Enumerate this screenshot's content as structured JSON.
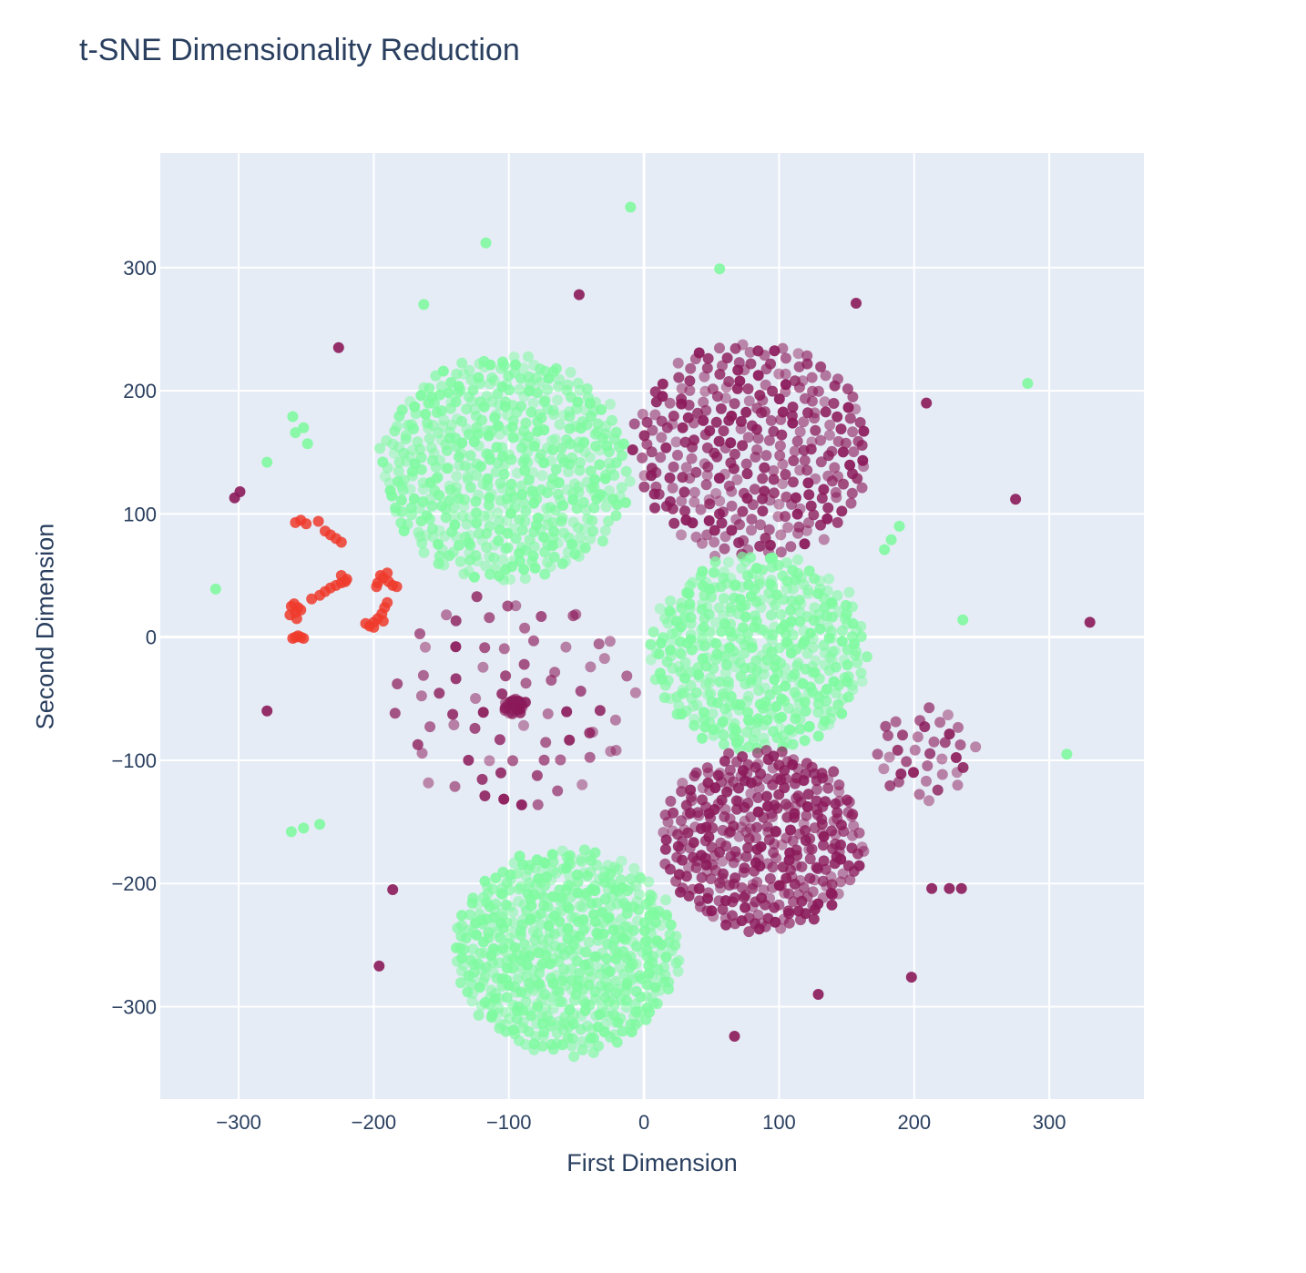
{
  "chart_data": {
    "type": "scatter",
    "title": "t-SNE Dimensionality Reduction",
    "xlabel": "First Dimension",
    "ylabel": "Second Dimension",
    "xlim": [
      -358,
      370
    ],
    "ylim": [
      -375,
      393
    ],
    "x_ticks": [
      -300,
      -200,
      -100,
      0,
      100,
      200,
      300
    ],
    "y_ticks": [
      -300,
      -200,
      -100,
      0,
      100,
      200,
      300
    ],
    "grid": true,
    "legend": "none",
    "colors": {
      "green": "#7ffaa0",
      "maroon": "#8b1a5a",
      "red": "#ef3b2c",
      "plot_bg": "#e5ecf6",
      "grid": "#ffffff"
    },
    "clusters": [
      {
        "color": "green",
        "shape": "disk",
        "cx": -103,
        "cy": 137,
        "r": 92,
        "n": 520
      },
      {
        "color": "maroon",
        "shape": "disk",
        "cx": 80,
        "cy": 152,
        "r": 88,
        "n": 320
      },
      {
        "color": "green",
        "shape": "disk",
        "cx": 85,
        "cy": -13,
        "r": 80,
        "n": 430
      },
      {
        "color": "maroon",
        "shape": "disk",
        "cx": 88,
        "cy": -165,
        "r": 75,
        "n": 360
      },
      {
        "color": "green",
        "shape": "disk",
        "cx": -57,
        "cy": -255,
        "r": 83,
        "n": 560
      },
      {
        "color": "maroon",
        "shape": "ring",
        "cx": -95,
        "cy": -55,
        "r": 92,
        "n": 75
      },
      {
        "color": "maroon",
        "shape": "dense",
        "cx": -97,
        "cy": -57,
        "r": 7,
        "n": 30
      },
      {
        "color": "maroon",
        "shape": "ring",
        "cx": 207,
        "cy": -95,
        "r": 38,
        "n": 38
      }
    ],
    "red_points": [
      [
        -258,
        93
      ],
      [
        -254,
        95
      ],
      [
        -250,
        92
      ],
      [
        -241,
        94
      ],
      [
        -236,
        86
      ],
      [
        -232,
        83
      ],
      [
        -228,
        80
      ],
      [
        -224,
        77
      ],
      [
        -261,
        25
      ],
      [
        -258,
        20
      ],
      [
        -262,
        18
      ],
      [
        -256,
        24
      ],
      [
        -259,
        27
      ],
      [
        -257,
        15
      ],
      [
        -254,
        22
      ],
      [
        -258,
        0
      ],
      [
        -254,
        0
      ],
      [
        -260,
        -1
      ],
      [
        -256,
        1
      ],
      [
        -252,
        -1
      ],
      [
        -246,
        31
      ],
      [
        -240,
        34
      ],
      [
        -236,
        37
      ],
      [
        -232,
        40
      ],
      [
        -228,
        42
      ],
      [
        -224,
        44
      ],
      [
        -220,
        47
      ],
      [
        -224,
        50
      ],
      [
        -221,
        45
      ],
      [
        -203,
        9
      ],
      [
        -200,
        12
      ],
      [
        -197,
        15
      ],
      [
        -194,
        19
      ],
      [
        -192,
        24
      ],
      [
        -190,
        28
      ],
      [
        -206,
        11
      ],
      [
        -200,
        8
      ],
      [
        -193,
        13
      ],
      [
        -197,
        44
      ],
      [
        -193,
        48
      ],
      [
        -189,
        45
      ],
      [
        -186,
        42
      ],
      [
        -195,
        50
      ],
      [
        -190,
        52
      ],
      [
        -183,
        41
      ],
      [
        -198,
        41
      ]
    ],
    "outliers": [
      {
        "x": -10,
        "y": 349,
        "color": "green"
      },
      {
        "x": -117,
        "y": 320,
        "color": "green"
      },
      {
        "x": 56,
        "y": 299,
        "color": "green"
      },
      {
        "x": -163,
        "y": 270,
        "color": "green"
      },
      {
        "x": 284,
        "y": 206,
        "color": "green"
      },
      {
        "x": -260,
        "y": 179,
        "color": "green"
      },
      {
        "x": -252,
        "y": 170,
        "color": "green"
      },
      {
        "x": -258,
        "y": 166,
        "color": "green"
      },
      {
        "x": -249,
        "y": 157,
        "color": "green"
      },
      {
        "x": -279,
        "y": 142,
        "color": "green"
      },
      {
        "x": 189,
        "y": 90,
        "color": "green"
      },
      {
        "x": 183,
        "y": 79,
        "color": "green"
      },
      {
        "x": 178,
        "y": 71,
        "color": "green"
      },
      {
        "x": -317,
        "y": 39,
        "color": "green"
      },
      {
        "x": 236,
        "y": 14,
        "color": "green"
      },
      {
        "x": 313,
        "y": -95,
        "color": "green"
      },
      {
        "x": -261,
        "y": -158,
        "color": "green"
      },
      {
        "x": -252,
        "y": -155,
        "color": "green"
      },
      {
        "x": -240,
        "y": -152,
        "color": "green"
      },
      {
        "x": -48,
        "y": 278,
        "color": "maroon"
      },
      {
        "x": 157,
        "y": 271,
        "color": "maroon"
      },
      {
        "x": -226,
        "y": 235,
        "color": "maroon"
      },
      {
        "x": 209,
        "y": 190,
        "color": "maroon"
      },
      {
        "x": -299,
        "y": 118,
        "color": "maroon"
      },
      {
        "x": -303,
        "y": 113,
        "color": "maroon"
      },
      {
        "x": 275,
        "y": 112,
        "color": "maroon"
      },
      {
        "x": 330,
        "y": 12,
        "color": "maroon"
      },
      {
        "x": -279,
        "y": -60,
        "color": "maroon"
      },
      {
        "x": -186,
        "y": -205,
        "color": "maroon"
      },
      {
        "x": 213,
        "y": -204,
        "color": "maroon"
      },
      {
        "x": 226,
        "y": -204,
        "color": "maroon"
      },
      {
        "x": 235,
        "y": -204,
        "color": "maroon"
      },
      {
        "x": -196,
        "y": -267,
        "color": "maroon"
      },
      {
        "x": 198,
        "y": -276,
        "color": "maroon"
      },
      {
        "x": 129,
        "y": -290,
        "color": "maroon"
      },
      {
        "x": 67,
        "y": -324,
        "color": "maroon"
      }
    ]
  }
}
